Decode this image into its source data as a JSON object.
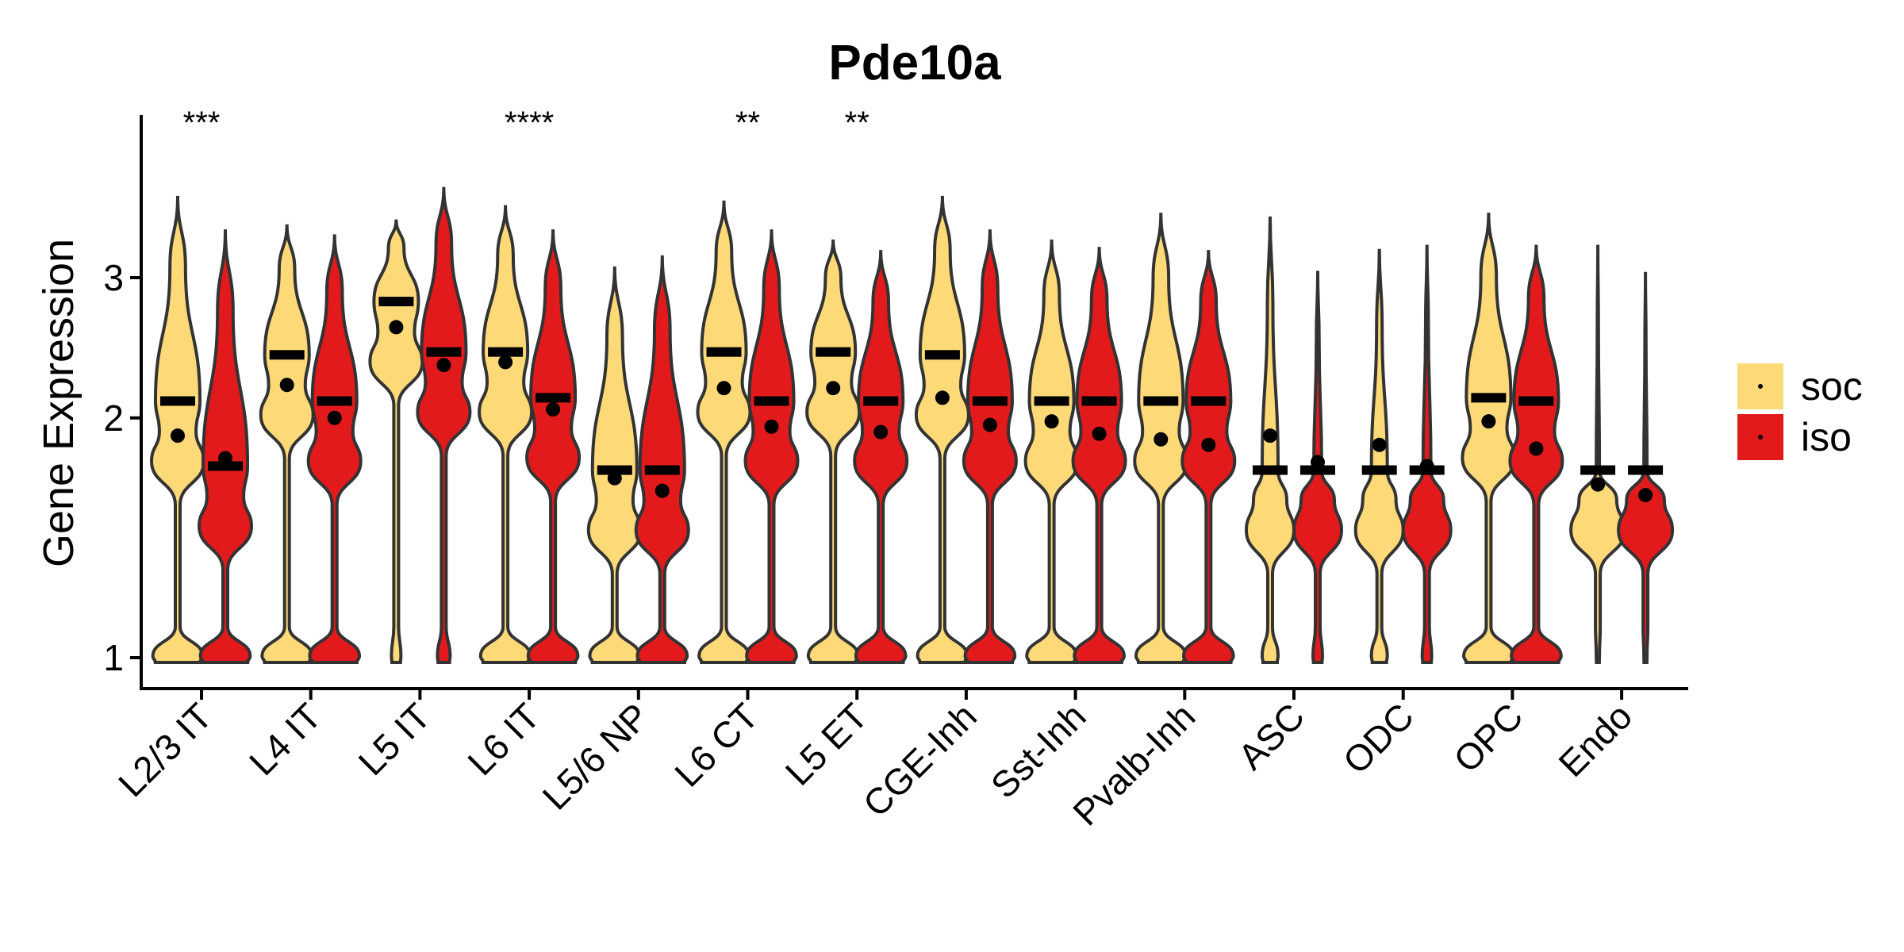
{
  "chart_data": {
    "type": "violin",
    "title": "Pde10a",
    "xlabel": "",
    "ylabel": "Gene Expression",
    "y_scale": "log",
    "ylim": [
      0.93,
      4.05
    ],
    "yticks": [
      1,
      2,
      3
    ],
    "categories": [
      "L2/3 IT",
      "L4 IT",
      "L5 IT",
      "L6 IT",
      "L5/6 NP",
      "L6 CT",
      "L5 ET",
      "CGE-Inh",
      "Sst-Inh",
      "Pvalb-Inh",
      "ASC",
      "ODC",
      "OPC",
      "Endo"
    ],
    "significance": [
      "***",
      "",
      "",
      "****",
      "",
      "**",
      "**",
      "",
      "",
      "",
      "",
      "",
      "",
      ""
    ],
    "legend_position": "right",
    "series": [
      {
        "name": "soc",
        "color": "#FDD978",
        "max": [
          3.8,
          3.5,
          3.55,
          3.7,
          3.1,
          3.75,
          3.35,
          3.8,
          3.35,
          3.62,
          3.58,
          3.26,
          3.62,
          3.3
        ],
        "median": [
          2.1,
          2.4,
          2.8,
          2.42,
          1.72,
          2.42,
          2.42,
          2.4,
          2.1,
          2.1,
          1.72,
          1.72,
          2.12,
          1.72
        ],
        "mean": [
          1.9,
          2.2,
          2.6,
          2.35,
          1.68,
          2.18,
          2.18,
          2.12,
          1.98,
          1.88,
          1.9,
          1.85,
          1.98,
          1.65
        ]
      },
      {
        "name": "iso",
        "color": "#E31A1C",
        "max": [
          3.45,
          3.4,
          3.9,
          3.45,
          3.2,
          3.45,
          3.25,
          3.45,
          3.28,
          3.25,
          3.06,
          3.3,
          3.3,
          3.05
        ],
        "median": [
          1.74,
          2.1,
          2.42,
          2.12,
          1.72,
          2.1,
          2.1,
          2.1,
          2.1,
          2.1,
          1.72,
          1.72,
          2.1,
          1.72
        ],
        "mean": [
          1.78,
          2.0,
          2.33,
          2.05,
          1.62,
          1.95,
          1.92,
          1.96,
          1.91,
          1.85,
          1.76,
          1.74,
          1.83,
          1.6
        ]
      }
    ]
  }
}
